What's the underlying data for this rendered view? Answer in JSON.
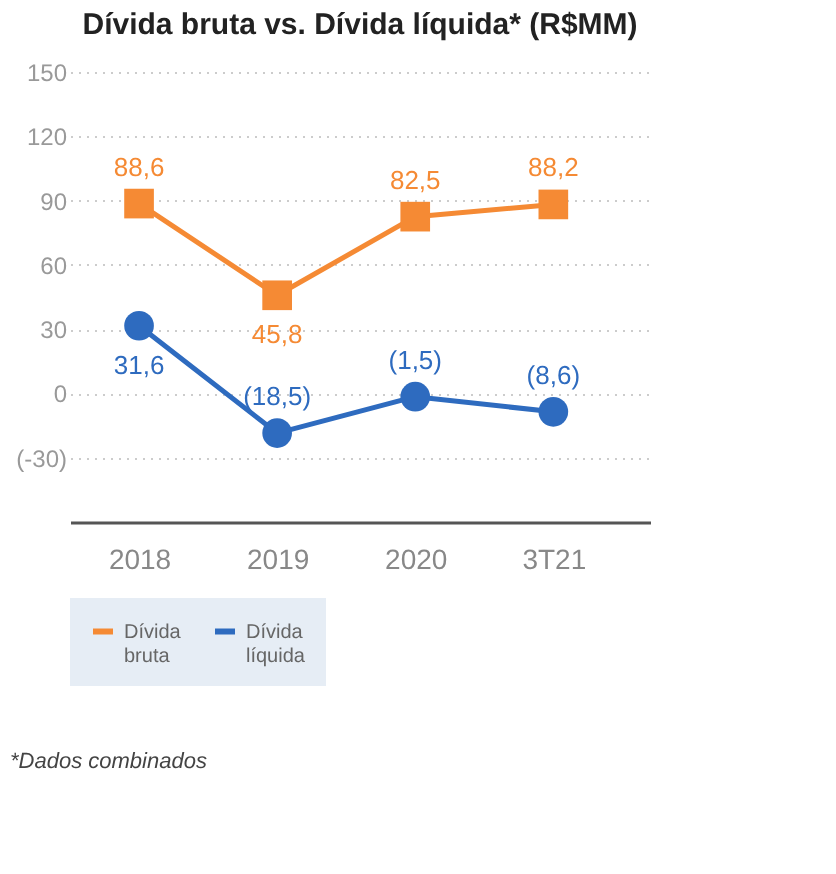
{
  "chart_data": {
    "type": "line",
    "title": "Dívida bruta vs. Dívida líquida* (R$MM)",
    "categories": [
      "2018",
      "2019",
      "2020",
      "3T21"
    ],
    "series": [
      {
        "name": "Dívida bruta",
        "color": "#f58a34",
        "values": [
          88.6,
          45.8,
          82.5,
          88.2
        ],
        "value_labels": [
          "88,6",
          "45,8",
          "82,5",
          "88,2"
        ],
        "marker": "square"
      },
      {
        "name": "Dívida líquida",
        "color": "#2e6bbf",
        "values": [
          31.6,
          -18.5,
          -1.5,
          -8.6
        ],
        "value_labels": [
          "31,6",
          "(18,5)",
          "(1,5)",
          "(8,6)"
        ],
        "marker": "circle"
      }
    ],
    "ylim": [
      -60,
      150
    ],
    "yticks": [
      {
        "value": -30,
        "label": "(-30)"
      },
      0,
      30,
      60,
      90,
      120,
      150
    ],
    "grid": "y",
    "legend": "bottom left",
    "line_style": "solid",
    "annotations": [
      "*Dados combinados"
    ]
  }
}
